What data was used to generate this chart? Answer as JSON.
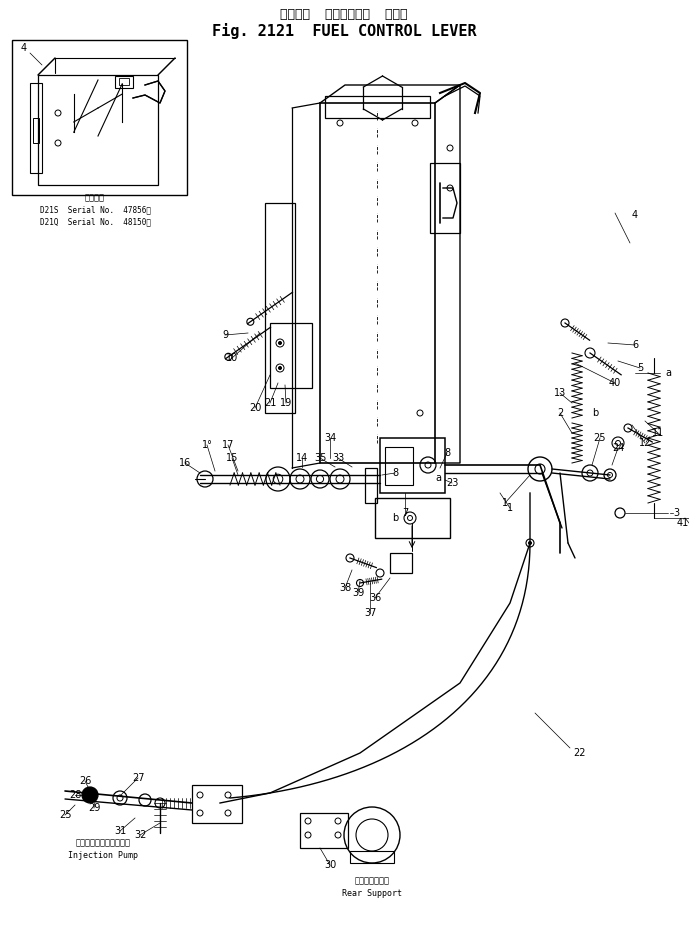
{
  "title_jp": "フェエル  コントロール  レバー",
  "title_en": "Fig. 2121  FUEL CONTROL LEVER",
  "bg_color": "#ffffff",
  "line_color": "#000000",
  "inset_text_jp": "適用号機",
  "inset_text1": "D21S  Serial No.  47856～",
  "inset_text2": "D21Q  Serial No.  48150～",
  "bottom_label_jp": "インジェクションポンプ",
  "bottom_label_en": "Injection Pump",
  "rear_support_jp": "リヤーサポート",
  "rear_support_en": "Rear Support"
}
